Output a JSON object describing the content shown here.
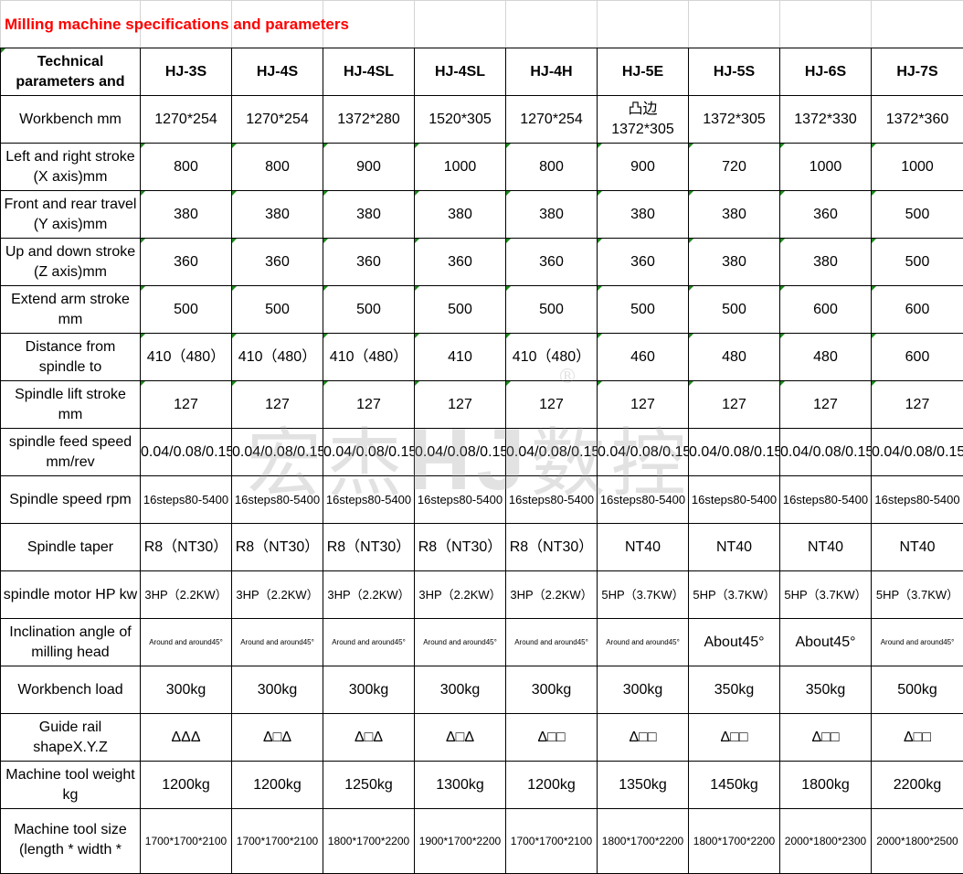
{
  "title": "Milling machine specifications and parameters",
  "header": {
    "label": "Technical parameters and",
    "models": [
      "HJ-3S",
      "HJ-4S",
      "HJ-4SL",
      "HJ-4SL",
      "HJ-4H",
      "HJ-5E",
      "HJ-5S",
      "HJ-6S",
      "HJ-7S"
    ]
  },
  "rows": [
    {
      "label": "Workbench mm",
      "values": [
        "1270*254",
        "1270*254",
        "1372*280",
        "1520*305",
        "1270*254",
        "凸边1372*305",
        "1372*305",
        "1372*330",
        "1372*360"
      ]
    },
    {
      "label": "Left and right stroke (X axis)mm",
      "values": [
        "800",
        "800",
        "900",
        "1000",
        "800",
        "900",
        "720",
        "1000",
        "1000"
      ]
    },
    {
      "label": "Front and rear travel (Y axis)mm",
      "values": [
        "380",
        "380",
        "380",
        "380",
        "380",
        "380",
        "380",
        "360",
        "500"
      ]
    },
    {
      "label": "Up and down stroke (Z axis)mm",
      "values": [
        "360",
        "360",
        "360",
        "360",
        "360",
        "360",
        "380",
        "380",
        "500"
      ]
    },
    {
      "label": "Extend arm stroke mm",
      "values": [
        "500",
        "500",
        "500",
        "500",
        "500",
        "500",
        "500",
        "600",
        "600"
      ]
    },
    {
      "label": "Distance from spindle to",
      "values": [
        "410（480）",
        "410（480）",
        "410（480）",
        "410",
        "410（480）",
        "460",
        "480",
        "480",
        "600"
      ]
    },
    {
      "label": "Spindle lift stroke mm",
      "values": [
        "127",
        "127",
        "127",
        "127",
        "127",
        "127",
        "127",
        "127",
        "127"
      ]
    },
    {
      "label": "spindle feed speed mm/rev",
      "values": [
        "0.04/0.08/0.15",
        "0.04/0.08/0.15",
        "0.04/0.08/0.15",
        "0.04/0.08/0.15",
        "0.04/0.08/0.15",
        "0.04/0.08/0.15",
        "0.04/0.08/0.15",
        "0.04/0.08/0.15",
        "0.04/0.08/0.15"
      ]
    },
    {
      "label": "Spindle speed rpm",
      "values": [
        "16steps80-5400",
        "16steps80-5400",
        "16steps80-5400",
        "16steps80-5400",
        "16steps80-5400",
        "16steps80-5400",
        "16steps80-5400",
        "16steps80-5400",
        "16steps80-5400"
      ]
    },
    {
      "label": "Spindle taper",
      "values": [
        "R8（NT30）",
        "R8（NT30）",
        "R8（NT30）",
        "R8（NT30）",
        "R8（NT30）",
        "NT40",
        "NT40",
        "NT40",
        "NT40"
      ]
    },
    {
      "label": "spindle motor HP kw",
      "values": [
        "3HP（2.2KW）",
        "3HP（2.2KW）",
        "3HP（2.2KW）",
        "3HP（2.2KW）",
        "3HP（2.2KW）",
        "5HP（3.7KW）",
        "5HP（3.7KW）",
        "5HP（3.7KW）",
        "5HP（3.7KW）"
      ]
    },
    {
      "label": "Inclination angle of milling head",
      "values": [
        "Around and around45°",
        "Around and around45°",
        "Around and around45°",
        "Around and around45°",
        "Around and around45°",
        "Around and around45°",
        "About45°",
        "About45°",
        "Around and around45°"
      ]
    },
    {
      "label": "Workbench load",
      "values": [
        "300kg",
        "300kg",
        "300kg",
        "300kg",
        "300kg",
        "300kg",
        "350kg",
        "350kg",
        "500kg"
      ]
    },
    {
      "label": "Guide rail shapeX.Y.Z",
      "values": [
        "ΔΔΔ",
        "Δ□Δ",
        "Δ□Δ",
        "Δ□Δ",
        "Δ□□",
        "Δ□□",
        "Δ□□",
        "Δ□□",
        "Δ□□"
      ]
    },
    {
      "label": "Machine tool weight kg",
      "values": [
        "1200kg",
        "1200kg",
        "1250kg",
        "1300kg",
        "1200kg",
        "1350kg",
        "1450kg",
        "1800kg",
        "2200kg"
      ]
    },
    {
      "label": "Machine tool size (length * width * height)mm",
      "values": [
        "1700*1700*2100",
        "1700*1700*2100",
        "1800*1700*2200",
        "1900*1700*2200",
        "1700*1700*2100",
        "1800*1700*2200",
        "1800*1700*2200",
        "2000*1800*2300",
        "2000*1800*2500"
      ]
    }
  ],
  "watermark": {
    "text_left": "宏杰",
    "text_mid": "HJ",
    "text_right": "数控",
    "reg": "®"
  },
  "colors": {
    "title": "#ff0000",
    "cell_marker": "#1a8a1a"
  }
}
